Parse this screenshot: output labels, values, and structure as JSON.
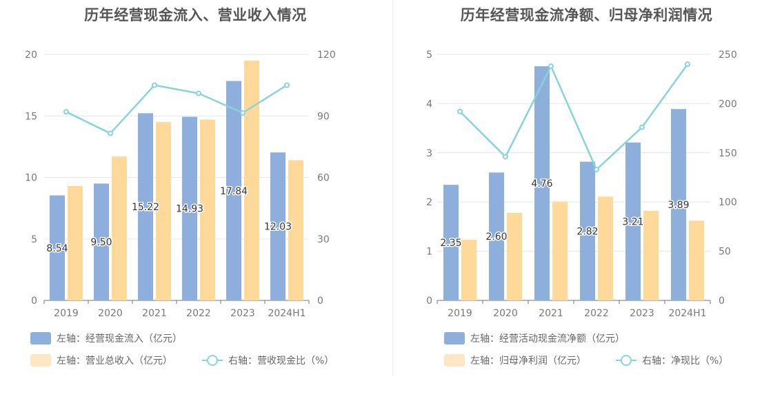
{
  "colors": {
    "bar1": "#8eaedb",
    "bar2": "#ffd99a",
    "bar2_legend": "#fde7c5",
    "line": "#86d4d9",
    "axis": "#6e7079",
    "grid": "#e0e6f1"
  },
  "charts": [
    {
      "title": "历年经营现金流入、营业收入情况",
      "legend": [
        {
          "label": "左轴：经营现金流入（亿元）",
          "kind": "bar1"
        },
        {
          "label": "左轴：营业总收入（亿元）",
          "kind": "bar2"
        },
        {
          "label": "右轴：营收现金比（%）",
          "kind": "line"
        }
      ]
    },
    {
      "title": "历年经营现金流净额、归母净利润情况",
      "legend": [
        {
          "label": "左轴：经营活动现金流净额（亿元）",
          "kind": "bar1"
        },
        {
          "label": "左轴：归母净利润（亿元）",
          "kind": "bar2"
        },
        {
          "label": "右轴：净现比（%）",
          "kind": "line"
        }
      ]
    }
  ],
  "chart_data": [
    {
      "type": "bar",
      "title": "历年经营现金流入、营业收入情况",
      "categories": [
        "2019",
        "2020",
        "2021",
        "2022",
        "2023",
        "2024H1"
      ],
      "y_left": {
        "min": 0,
        "max": 20,
        "ticks": [
          "0",
          "5",
          "10",
          "15",
          "20"
        ]
      },
      "y_right": {
        "min": 0,
        "max": 120,
        "ticks": [
          "0",
          "30",
          "60",
          "90",
          "120"
        ]
      },
      "series": [
        {
          "name": "左轴：经营现金流入（亿元）",
          "type": "bar",
          "axis": "left",
          "values": [
            8.54,
            9.5,
            15.22,
            14.93,
            17.84,
            12.03
          ],
          "labels": [
            "8.54",
            "9.50",
            "15.22",
            "14.93",
            "17.84",
            "12.03"
          ]
        },
        {
          "name": "左轴：营业总收入（亿元）",
          "type": "bar",
          "axis": "left",
          "values": [
            9.3,
            11.7,
            14.5,
            14.7,
            19.5,
            11.4
          ]
        },
        {
          "name": "右轴：营收现金比（%）",
          "type": "line",
          "axis": "right",
          "values": [
            92,
            81.5,
            105,
            101,
            91.5,
            105
          ]
        }
      ],
      "grid": true,
      "legend_position": "bottom"
    },
    {
      "type": "bar",
      "title": "历年经营现金流净额、归母净利润情况",
      "categories": [
        "2019",
        "2020",
        "2021",
        "2022",
        "2023",
        "2024H1"
      ],
      "y_left": {
        "min": 0,
        "max": 5,
        "ticks": [
          "0",
          "1",
          "2",
          "3",
          "4",
          "5"
        ]
      },
      "y_right": {
        "min": 0,
        "max": 250,
        "ticks": [
          "0",
          "50",
          "100",
          "150",
          "200",
          "250"
        ]
      },
      "series": [
        {
          "name": "左轴：经营活动现金流净额（亿元）",
          "type": "bar",
          "axis": "left",
          "values": [
            2.35,
            2.6,
            4.76,
            2.82,
            3.21,
            3.89
          ],
          "labels": [
            "2.35",
            "2.60",
            "4.76",
            "2.82",
            "3.21",
            "3.89"
          ]
        },
        {
          "name": "左轴：归母净利润（亿元）",
          "type": "bar",
          "axis": "left",
          "values": [
            1.23,
            1.78,
            2.01,
            2.11,
            1.82,
            1.62
          ]
        },
        {
          "name": "右轴：净现比（%）",
          "type": "line",
          "axis": "right",
          "values": [
            192,
            146,
            238,
            133,
            176,
            240
          ]
        }
      ],
      "grid": true,
      "legend_position": "bottom"
    }
  ]
}
